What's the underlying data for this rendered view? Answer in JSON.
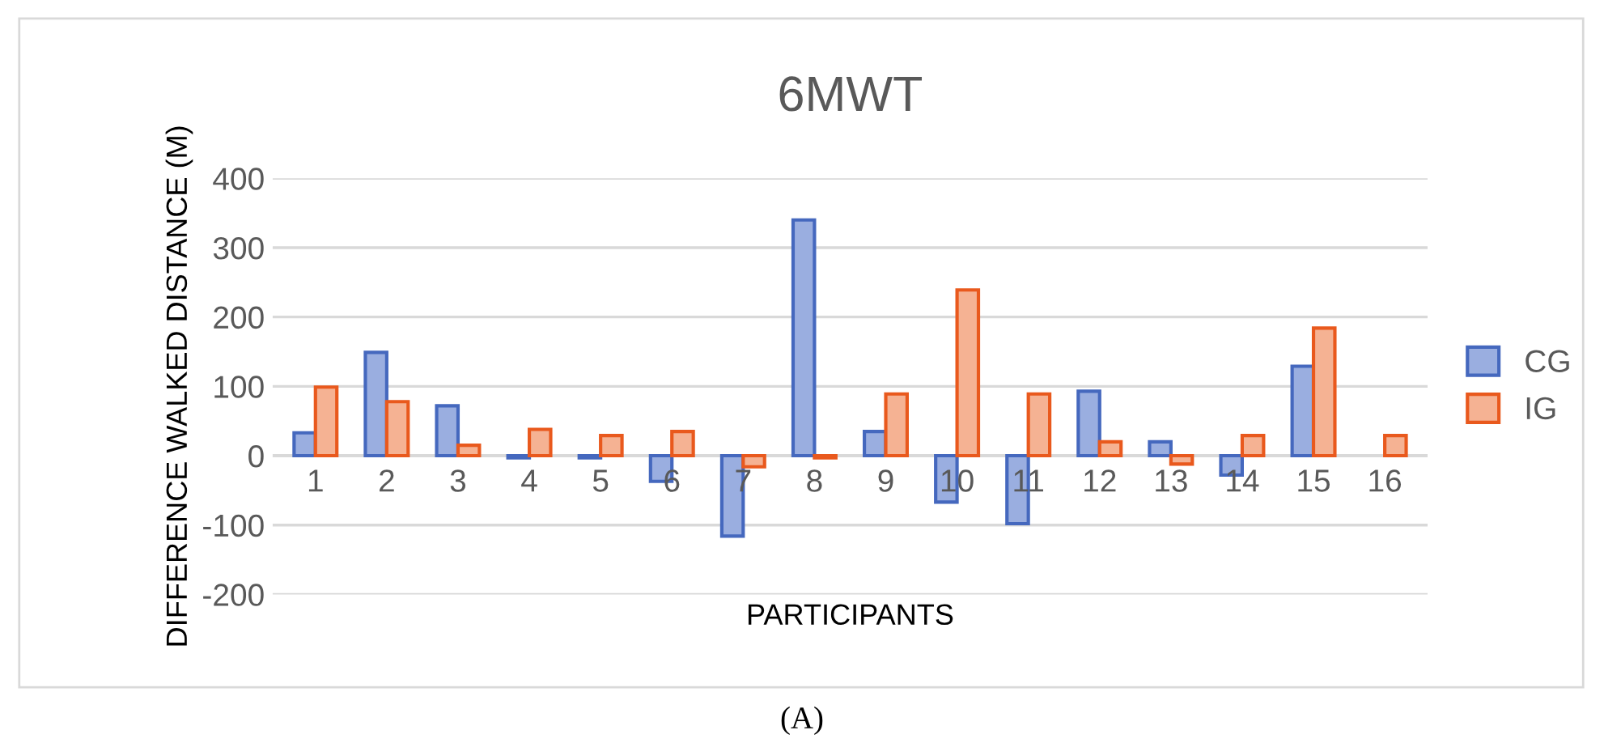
{
  "chart_data": {
    "type": "bar",
    "title": "6MWT",
    "xlabel": "PARTICIPANTS",
    "ylabel": "DIFFERENCE WALKED DISTANCE (M)",
    "categories": [
      "1",
      "2",
      "3",
      "4",
      "5",
      "6",
      "7",
      "8",
      "9",
      "10",
      "11",
      "12",
      "13",
      "14",
      "15",
      "16"
    ],
    "series": [
      {
        "name": "CG",
        "color": "#9aaee0",
        "values": [
          33,
          149,
          72,
          -3,
          -3,
          -37,
          -116,
          340,
          35,
          -67,
          -98,
          93,
          20,
          -28,
          129,
          null
        ]
      },
      {
        "name": "IG",
        "color": "#f5b293",
        "values": [
          99,
          78,
          15,
          38,
          29,
          35,
          -16,
          -3,
          89,
          239,
          89,
          20,
          -12,
          29,
          184,
          29
        ]
      }
    ],
    "ylim": [
      -200,
      400
    ],
    "yticks": [
      -200,
      -100,
      0,
      100,
      200,
      300,
      400
    ],
    "grid": "y",
    "legend": "right",
    "annotations": [
      "(A)"
    ]
  }
}
